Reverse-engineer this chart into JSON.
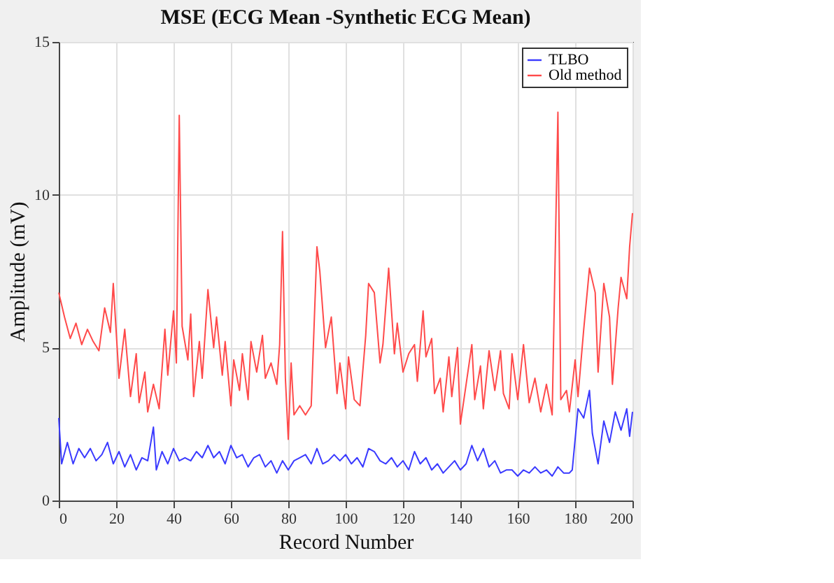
{
  "chart_data": {
    "type": "line",
    "title": "MSE (ECG Mean -Synthetic ECG Mean)",
    "xlabel": "Record Number",
    "ylabel": "Amplitude (mV)",
    "xlim": [
      0,
      200
    ],
    "xticks": [
      0,
      20,
      40,
      60,
      80,
      100,
      120,
      140,
      160,
      180,
      200
    ],
    "ylim": [
      0,
      15
    ],
    "yticks": [
      0,
      5,
      10,
      15
    ],
    "grid": true,
    "legend": "top right",
    "marker": "none",
    "line_style": "solid",
    "series": [
      {
        "name": "TLBO",
        "color": "#3a3aff",
        "x": [
          0,
          1,
          3,
          5,
          7,
          9,
          11,
          13,
          15,
          17,
          19,
          21,
          23,
          25,
          27,
          29,
          31,
          33,
          34,
          36,
          38,
          40,
          42,
          44,
          46,
          48,
          50,
          52,
          54,
          56,
          58,
          60,
          62,
          64,
          66,
          68,
          70,
          72,
          74,
          76,
          78,
          80,
          82,
          84,
          86,
          88,
          90,
          92,
          94,
          96,
          98,
          100,
          102,
          104,
          106,
          108,
          110,
          112,
          114,
          116,
          118,
          120,
          122,
          124,
          126,
          128,
          130,
          132,
          134,
          136,
          138,
          140,
          142,
          144,
          146,
          148,
          150,
          152,
          154,
          156,
          158,
          160,
          162,
          164,
          166,
          168,
          170,
          172,
          174,
          176,
          178,
          179,
          181,
          183,
          185,
          186,
          188,
          190,
          192,
          194,
          196,
          198,
          199,
          200
        ],
        "values": [
          2.7,
          1.2,
          1.9,
          1.2,
          1.7,
          1.4,
          1.7,
          1.3,
          1.5,
          1.9,
          1.2,
          1.6,
          1.1,
          1.5,
          1.0,
          1.4,
          1.3,
          2.4,
          1.0,
          1.6,
          1.2,
          1.7,
          1.3,
          1.4,
          1.3,
          1.6,
          1.4,
          1.8,
          1.4,
          1.6,
          1.2,
          1.8,
          1.4,
          1.5,
          1.1,
          1.4,
          1.5,
          1.1,
          1.3,
          0.9,
          1.3,
          1.0,
          1.3,
          1.4,
          1.5,
          1.2,
          1.7,
          1.2,
          1.3,
          1.5,
          1.3,
          1.5,
          1.2,
          1.4,
          1.1,
          1.7,
          1.6,
          1.3,
          1.2,
          1.4,
          1.1,
          1.3,
          1.0,
          1.6,
          1.2,
          1.4,
          1.0,
          1.2,
          0.9,
          1.1,
          1.3,
          1.0,
          1.2,
          1.8,
          1.3,
          1.7,
          1.1,
          1.3,
          0.9,
          1.0,
          1.0,
          0.8,
          1.0,
          0.9,
          1.1,
          0.9,
          1.0,
          0.8,
          1.1,
          0.9,
          0.9,
          1.0,
          3.0,
          2.7,
          3.6,
          2.2,
          1.2,
          2.6,
          1.9,
          2.9,
          2.3,
          3.0,
          2.1,
          2.9
        ]
      },
      {
        "name": "Old method",
        "color": "#ff4a4a",
        "x": [
          0,
          2,
          4,
          6,
          8,
          10,
          12,
          14,
          16,
          18,
          19,
          21,
          23,
          25,
          27,
          28,
          30,
          31,
          33,
          35,
          37,
          38,
          40,
          41,
          42,
          43,
          45,
          46,
          47,
          49,
          50,
          52,
          54,
          55,
          57,
          58,
          60,
          61,
          63,
          64,
          66,
          67,
          69,
          71,
          72,
          74,
          76,
          77,
          78,
          79,
          80,
          81,
          82,
          84,
          86,
          88,
          90,
          91,
          93,
          95,
          97,
          98,
          100,
          101,
          103,
          105,
          107,
          108,
          110,
          112,
          113,
          115,
          117,
          118,
          120,
          122,
          124,
          125,
          127,
          128,
          130,
          131,
          133,
          134,
          136,
          137,
          139,
          140,
          142,
          144,
          145,
          147,
          148,
          150,
          152,
          154,
          155,
          157,
          158,
          160,
          162,
          164,
          166,
          168,
          170,
          172,
          174,
          175,
          177,
          178,
          180,
          181,
          183,
          185,
          187,
          188,
          190,
          192,
          193,
          195,
          196,
          198,
          199,
          200
        ],
        "values": [
          6.8,
          6.0,
          5.3,
          5.8,
          5.1,
          5.6,
          5.2,
          4.9,
          6.3,
          5.5,
          7.1,
          4.0,
          5.6,
          3.4,
          4.8,
          3.2,
          4.2,
          2.9,
          3.8,
          3.0,
          5.6,
          4.1,
          6.2,
          4.5,
          12.6,
          5.7,
          4.6,
          6.1,
          3.4,
          5.2,
          4.0,
          6.9,
          5.0,
          6.0,
          4.1,
          5.2,
          3.1,
          4.6,
          3.6,
          4.8,
          3.3,
          5.2,
          4.2,
          5.4,
          4.0,
          4.5,
          3.8,
          5.1,
          8.8,
          4.0,
          2.0,
          4.5,
          2.8,
          3.1,
          2.8,
          3.1,
          8.3,
          7.5,
          5.0,
          6.0,
          3.5,
          4.5,
          3.0,
          4.7,
          3.3,
          3.1,
          5.4,
          7.1,
          6.8,
          4.5,
          5.1,
          7.6,
          4.8,
          5.8,
          4.2,
          4.8,
          5.1,
          3.9,
          6.2,
          4.7,
          5.3,
          3.5,
          4.0,
          2.9,
          4.7,
          3.4,
          5.0,
          2.5,
          3.8,
          5.1,
          3.3,
          4.4,
          3.0,
          4.9,
          3.6,
          4.9,
          3.5,
          3.0,
          4.8,
          3.3,
          5.1,
          3.2,
          4.0,
          2.9,
          3.8,
          2.8,
          12.7,
          3.3,
          3.6,
          2.9,
          4.6,
          3.4,
          5.6,
          7.6,
          6.8,
          4.2,
          7.1,
          6.0,
          3.8,
          6.3,
          7.3,
          6.6,
          8.3,
          9.4
        ]
      }
    ]
  }
}
